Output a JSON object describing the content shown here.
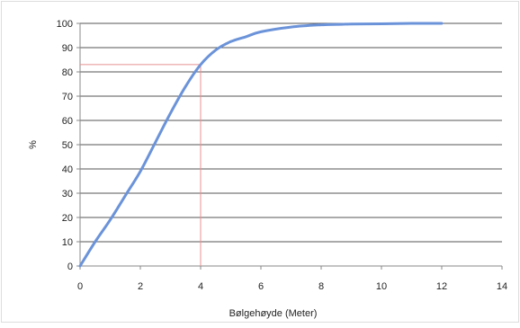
{
  "chart_data": {
    "type": "line",
    "title": "",
    "xlabel": "Bølgehøyde (Meter)",
    "ylabel": "%",
    "xlim": [
      0,
      14
    ],
    "ylim": [
      0,
      100
    ],
    "xticks": [
      0,
      2,
      4,
      6,
      8,
      10,
      12,
      14
    ],
    "yticks": [
      0,
      10,
      20,
      30,
      40,
      50,
      60,
      70,
      80,
      90,
      100
    ],
    "grid": "horizontal",
    "legend": "none",
    "series": [
      {
        "color": "#6b93d9",
        "x": [
          0,
          0.5,
          1,
          1.5,
          2,
          2.5,
          3,
          3.5,
          4,
          4.5,
          5,
          5.5,
          6,
          7,
          8,
          9,
          10,
          11,
          12
        ],
        "y": [
          0,
          10,
          19,
          29,
          39,
          51,
          63,
          74,
          83,
          89,
          92.5,
          94.5,
          96.5,
          98.5,
          99.4,
          99.7,
          99.8,
          100,
          100
        ]
      }
    ],
    "annotations": [
      {
        "type": "reference_lines",
        "x": 4,
        "y": 83,
        "color": "#e89090"
      }
    ],
    "colors": {
      "gridline": "#555555",
      "axis": "#888888",
      "frame": "#dddddd"
    }
  }
}
